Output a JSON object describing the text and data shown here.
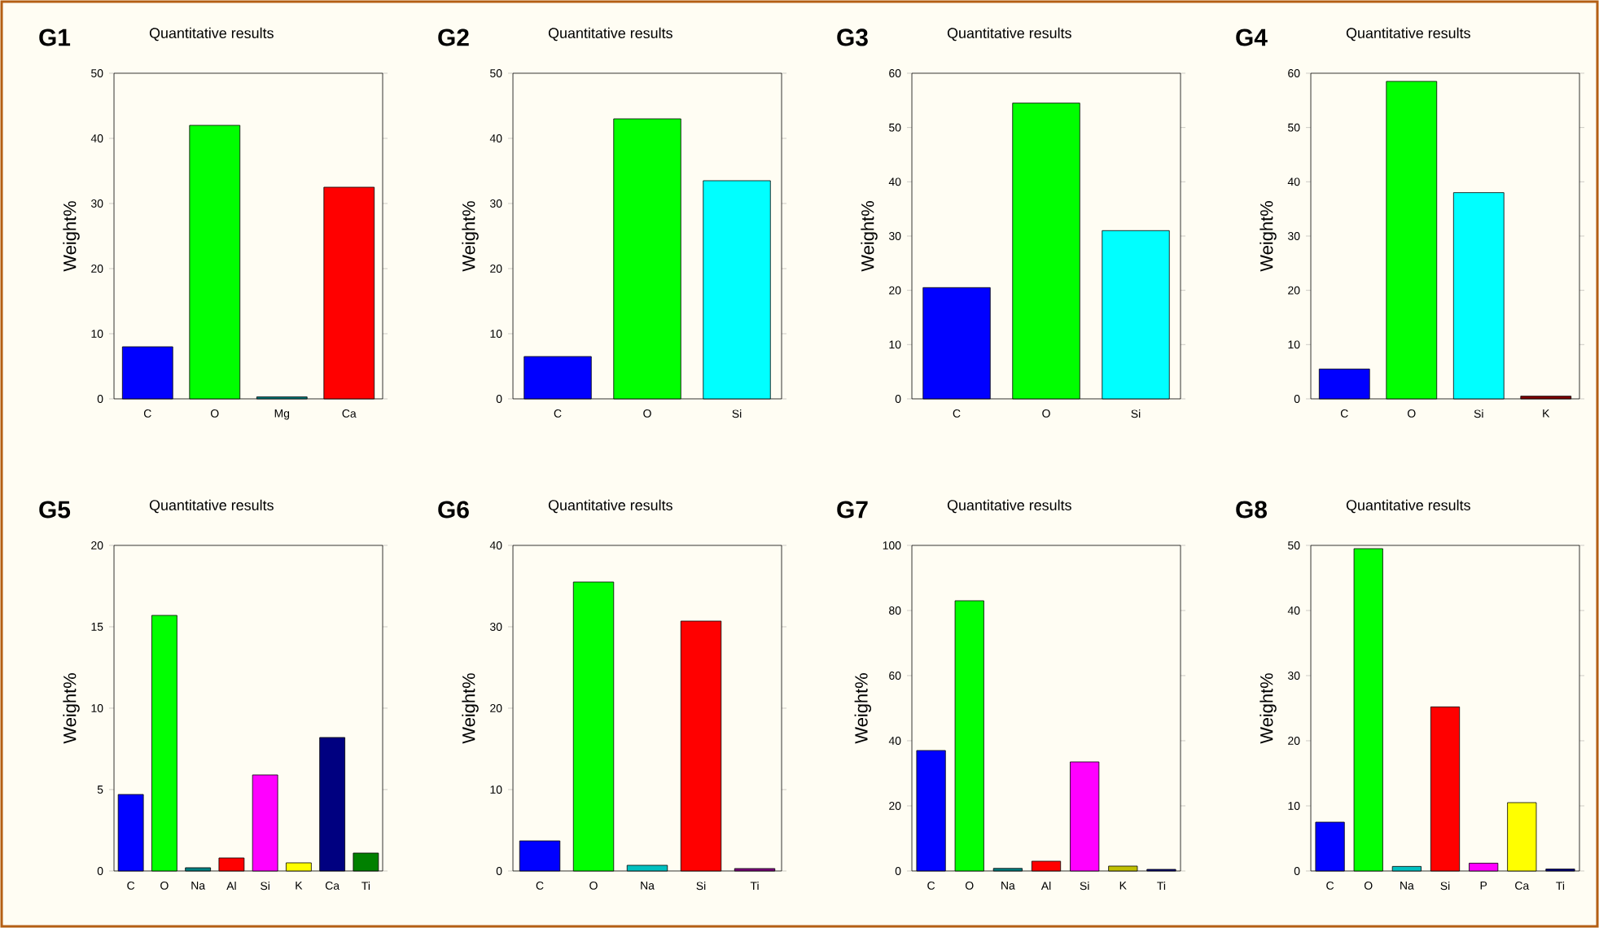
{
  "chart_data": [
    {
      "type": "bar",
      "title": "G1",
      "subtitle": "Quantitative results",
      "ylabel": "Weight%",
      "categories": [
        "C",
        "O",
        "Mg",
        "Ca"
      ],
      "values": [
        8,
        42,
        0.3,
        32.5
      ],
      "colors": [
        "#0000ff",
        "#00ff00",
        "#008080",
        "#ff0000"
      ],
      "ylim": [
        0,
        50
      ],
      "yticks": [
        0,
        10,
        20,
        30,
        40,
        50
      ]
    },
    {
      "type": "bar",
      "title": "G2",
      "subtitle": "Quantitative results",
      "ylabel": "Weight%",
      "categories": [
        "C",
        "O",
        "Si"
      ],
      "values": [
        6.5,
        43,
        33.5
      ],
      "colors": [
        "#0000ff",
        "#00ff00",
        "#00ffff"
      ],
      "ylim": [
        0,
        50
      ],
      "yticks": [
        0,
        10,
        20,
        30,
        40,
        50
      ]
    },
    {
      "type": "bar",
      "title": "G3",
      "subtitle": "Quantitative results",
      "ylabel": "Weight%",
      "categories": [
        "C",
        "O",
        "Si"
      ],
      "values": [
        20.5,
        54.5,
        31
      ],
      "colors": [
        "#0000ff",
        "#00ff00",
        "#00ffff"
      ],
      "ylim": [
        0,
        60
      ],
      "yticks": [
        0,
        10,
        20,
        30,
        40,
        50,
        60
      ]
    },
    {
      "type": "bar",
      "title": "G4",
      "subtitle": "Quantitative results",
      "ylabel": "Weight%",
      "categories": [
        "C",
        "O",
        "Si",
        "K"
      ],
      "values": [
        5.5,
        58.5,
        38,
        0.5
      ],
      "colors": [
        "#0000ff",
        "#00ff00",
        "#00ffff",
        "#800000"
      ],
      "ylim": [
        0,
        60
      ],
      "yticks": [
        0,
        10,
        20,
        30,
        40,
        50,
        60
      ]
    },
    {
      "type": "bar",
      "title": "G5",
      "subtitle": "Quantitative results",
      "ylabel": "Weight%",
      "categories": [
        "C",
        "O",
        "Na",
        "Al",
        "Si",
        "K",
        "Ca",
        "Ti"
      ],
      "values": [
        4.7,
        15.7,
        0.2,
        0.8,
        5.9,
        0.5,
        8.2,
        1.1
      ],
      "colors": [
        "#0000ff",
        "#00ff00",
        "#008080",
        "#ff0000",
        "#ff00ff",
        "#ffff00",
        "#000080",
        "#008000"
      ],
      "ylim": [
        0,
        20
      ],
      "yticks": [
        0,
        5,
        10,
        15,
        20
      ]
    },
    {
      "type": "bar",
      "title": "G6",
      "subtitle": "Quantitative results",
      "ylabel": "Weight%",
      "categories": [
        "C",
        "O",
        "Na",
        "Si",
        "Ti"
      ],
      "values": [
        3.7,
        35.5,
        0.7,
        30.7,
        0.3
      ],
      "colors": [
        "#0000ff",
        "#00ff00",
        "#00c0c0",
        "#ff0000",
        "#800080"
      ],
      "ylim": [
        0,
        40
      ],
      "yticks": [
        0,
        10,
        20,
        30,
        40
      ]
    },
    {
      "type": "bar",
      "title": "G7",
      "subtitle": "Quantitative results",
      "ylabel": "Weight%",
      "categories": [
        "C",
        "O",
        "Na",
        "Al",
        "Si",
        "K",
        "Ti"
      ],
      "values": [
        37,
        83,
        0.8,
        3,
        33.5,
        1.5,
        0.5
      ],
      "colors": [
        "#0000ff",
        "#00ff00",
        "#008080",
        "#ff0000",
        "#ff00ff",
        "#c0c000",
        "#000080"
      ],
      "ylim": [
        0,
        100
      ],
      "yticks": [
        0,
        20,
        40,
        60,
        80,
        100
      ]
    },
    {
      "type": "bar",
      "title": "G8",
      "subtitle": "Quantitative results",
      "ylabel": "Weight%",
      "categories": [
        "C",
        "O",
        "Na",
        "Si",
        "P",
        "Ca",
        "Ti"
      ],
      "values": [
        7.5,
        49.5,
        0.7,
        25.2,
        1.2,
        10.5,
        0.3
      ],
      "colors": [
        "#0000ff",
        "#00ff00",
        "#00c0c0",
        "#ff0000",
        "#ff00ff",
        "#ffff00",
        "#000080"
      ],
      "ylim": [
        0,
        50
      ],
      "yticks": [
        0,
        10,
        20,
        30,
        40,
        50
      ]
    }
  ]
}
